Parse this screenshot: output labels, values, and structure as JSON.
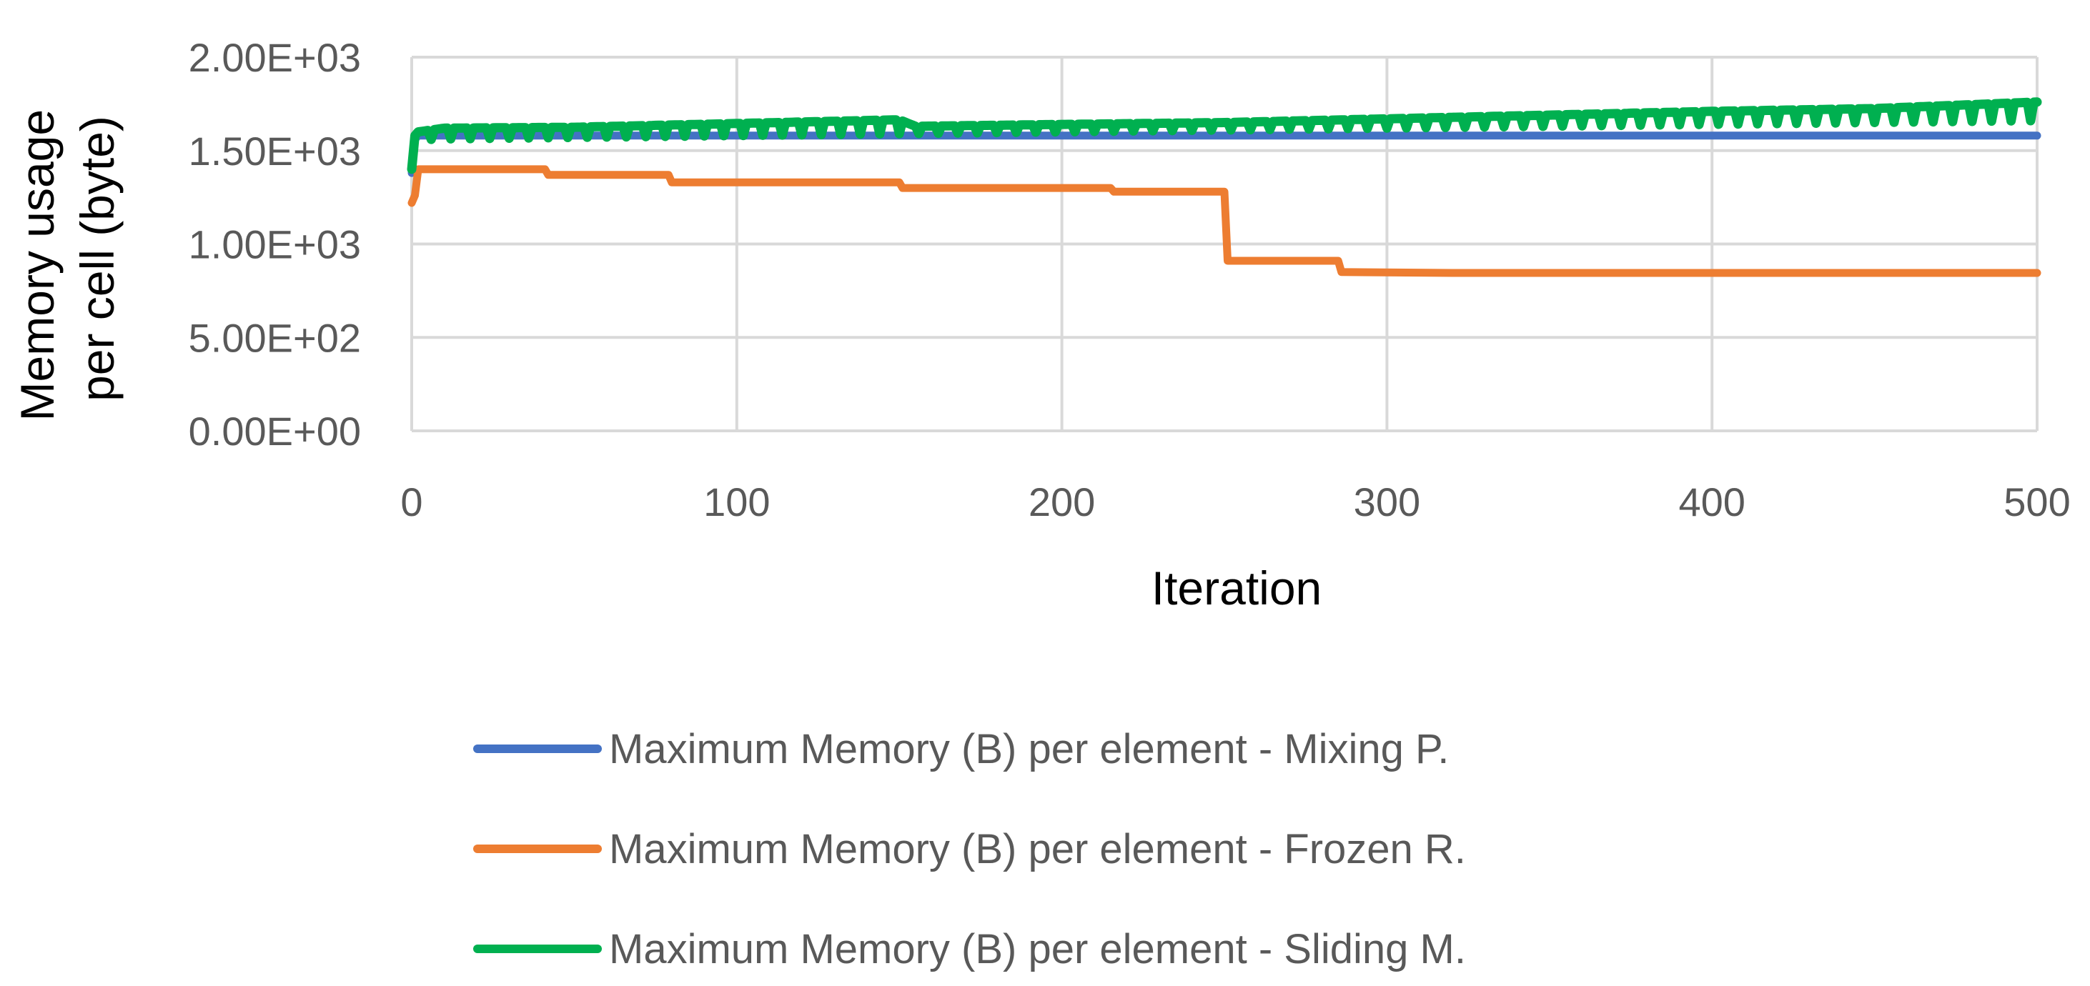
{
  "chart_data": {
    "type": "line",
    "title": "",
    "xlabel": "Iteration",
    "ylabel": [
      "Memory usage",
      "per cell (byte)"
    ],
    "xlim": [
      0,
      500
    ],
    "ylim": [
      0,
      2000
    ],
    "x_ticks": [
      0,
      100,
      200,
      300,
      400,
      500
    ],
    "x_tick_labels": [
      "0",
      "100",
      "200",
      "300",
      "400",
      "500"
    ],
    "y_ticks": [
      0,
      500,
      1000,
      1500,
      2000
    ],
    "y_tick_labels": [
      "0.00E+00",
      "5.00E+02",
      "1.00E+03",
      "1.50E+03",
      "2.00E+03"
    ],
    "grid": true,
    "legend_position": "bottom",
    "series": [
      {
        "name": "Maximum Memory (B) per element - Mixing P.",
        "color": "#4472C4",
        "x": [
          0,
          1,
          2,
          10,
          50,
          100,
          150,
          200,
          250,
          300,
          350,
          400,
          450,
          500
        ],
        "y": [
          1380,
          1560,
          1580,
          1580,
          1580,
          1580,
          1580,
          1580,
          1580,
          1580,
          1580,
          1580,
          1580,
          1580
        ]
      },
      {
        "name": "Maximum Memory (B) per element  - Frozen R.",
        "color": "#ED7D31",
        "x": [
          0,
          1,
          2,
          41,
          42,
          79,
          80,
          150,
          151,
          215,
          216,
          250,
          251,
          285,
          286,
          320,
          400,
          500
        ],
        "y": [
          1220,
          1260,
          1400,
          1400,
          1370,
          1370,
          1330,
          1330,
          1300,
          1300,
          1280,
          1280,
          910,
          910,
          850,
          845,
          845,
          845
        ]
      },
      {
        "name": "Maximum Memory (B) per element - Sliding M.",
        "color": "#00B050",
        "x": [
          0,
          1,
          2,
          10,
          50,
          100,
          150,
          155,
          200,
          250,
          300,
          350,
          400,
          450,
          500
        ],
        "y": [
          1400,
          1580,
          1600,
          1620,
          1625,
          1645,
          1665,
          1630,
          1640,
          1650,
          1670,
          1690,
          1710,
          1725,
          1760
        ],
        "oscillation": [
          1560,
          1600
        ]
      }
    ]
  }
}
